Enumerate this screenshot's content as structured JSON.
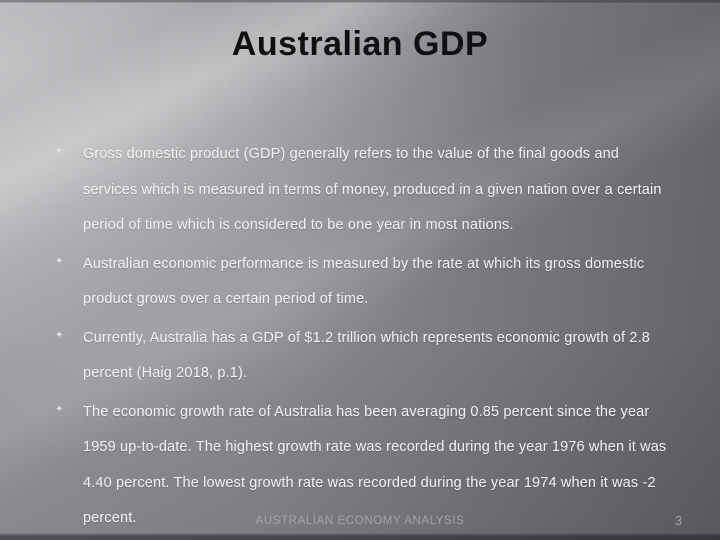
{
  "slide": {
    "title": "Australian GDP",
    "bullet_glyph": "✦",
    "bullets": [
      "Gross domestic product (GDP) generally refers to the value of the final goods and services which is measured in terms of money, produced in a given nation over a certain period of time which is considered to be one year in most nations.",
      "Australian economic performance is measured by the rate at which its gross domestic product grows over a certain period of time.",
      "Currently, Australia has a GDP of $1.2 trillion which represents economic growth of 2.8 percent (Haig 2018, p.1).",
      "The economic growth rate of Australia has been averaging 0.85 percent since the year 1959 up-to-date. The highest growth rate was recorded during the year 1976 when it was 4.40 percent. The lowest growth rate was recorded during the year 1974 when it was -2 percent."
    ],
    "footer_text": "AUSTRALIAN ECONOMY ANALYSIS",
    "slide_number": "3",
    "colors": {
      "background_light": "#b5b5ba",
      "background_dark": "#636368",
      "title_text": "#101013",
      "body_text": "#f4f4f6",
      "footer_text": "#a3a3a8"
    }
  }
}
